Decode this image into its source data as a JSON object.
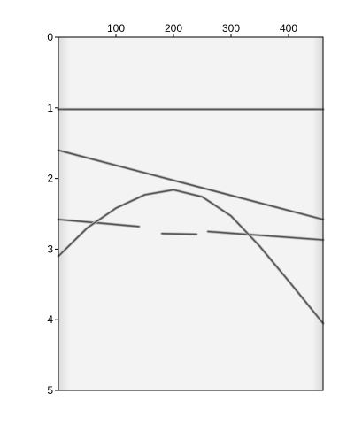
{
  "chart_data": {
    "type": "line",
    "title": "",
    "xlabel": "",
    "ylabel": "",
    "xlim": [
      0,
      460
    ],
    "ylim": [
      0,
      5
    ],
    "y_inverted": true,
    "x_axis_position": "top",
    "grid": false,
    "x_ticks": [
      {
        "value": 100,
        "label": "100"
      },
      {
        "value": 200,
        "label": "200"
      },
      {
        "value": 300,
        "label": "300"
      },
      {
        "value": 400,
        "label": "400"
      }
    ],
    "y_ticks": [
      {
        "value": 0,
        "label": "0"
      },
      {
        "value": 1,
        "label": "1"
      },
      {
        "value": 2,
        "label": "2"
      },
      {
        "value": 3,
        "label": "3"
      },
      {
        "value": 4,
        "label": "4"
      },
      {
        "value": 5,
        "label": "5"
      }
    ],
    "background_color": "#f2f2f2",
    "line_color": "#555555",
    "series": [
      {
        "x": [
          0,
          460
        ],
        "y": [
          1.02,
          1.02
        ]
      },
      {
        "x": [
          0,
          460
        ],
        "y": [
          1.6,
          2.58
        ]
      },
      {
        "x": [
          0,
          140
        ],
        "y": [
          2.58,
          2.68
        ]
      },
      {
        "x": [
          180,
          240
        ],
        "y": [
          2.78,
          2.79
        ]
      },
      {
        "x": [
          260,
          460
        ],
        "y": [
          2.75,
          2.87
        ]
      },
      {
        "x": [
          0,
          50,
          100,
          150,
          200,
          250,
          300,
          350,
          400,
          460
        ],
        "y": [
          3.1,
          2.7,
          2.42,
          2.23,
          2.16,
          2.26,
          2.53,
          2.96,
          3.45,
          4.05
        ]
      }
    ]
  }
}
